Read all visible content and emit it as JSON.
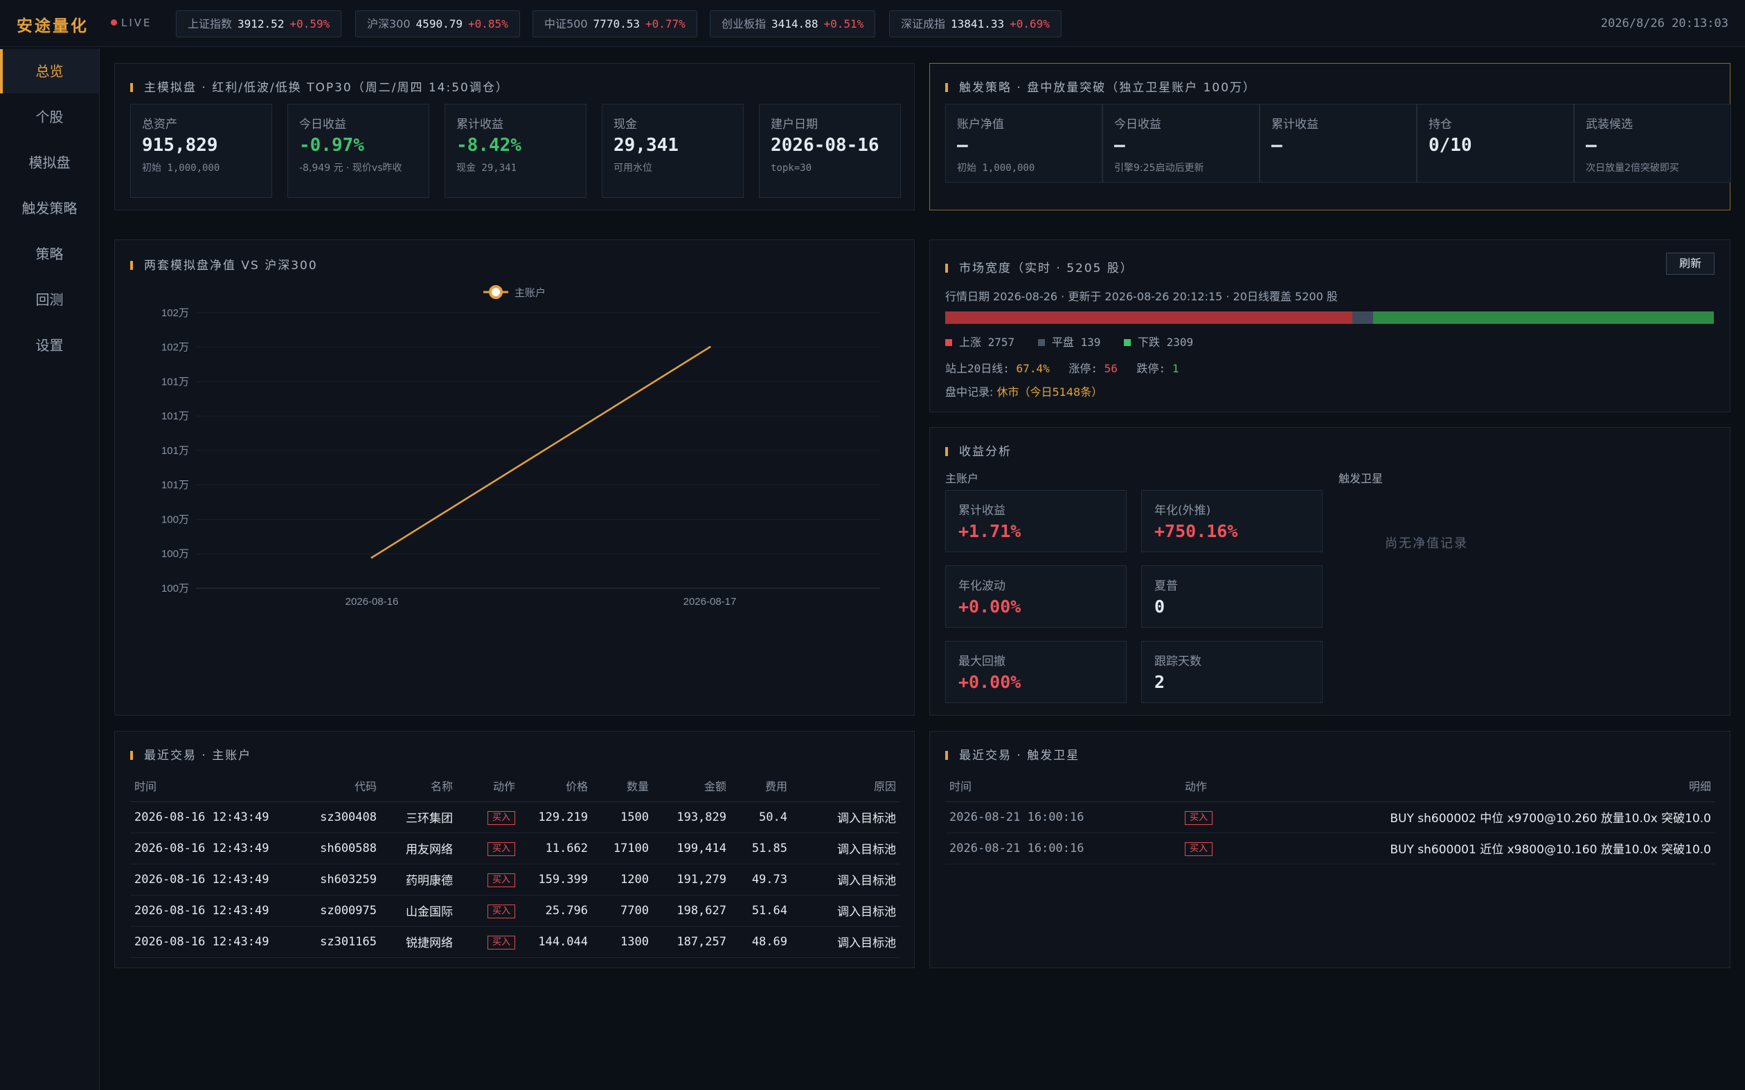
{
  "brand": "安途量化",
  "live_label": "LIVE",
  "tickers": [
    {
      "name": "上证指数",
      "value": "3912.52",
      "change": "+0.59%"
    },
    {
      "name": "沪深300",
      "value": "4590.79",
      "change": "+0.85%"
    },
    {
      "name": "中证500",
      "value": "7770.53",
      "change": "+0.77%"
    },
    {
      "name": "创业板指",
      "value": "3414.88",
      "change": "+0.51%"
    },
    {
      "name": "深证成指",
      "value": "13841.33",
      "change": "+0.69%"
    }
  ],
  "clock": "2026/8/26 20:13:03",
  "sidebar": {
    "items": [
      {
        "label": "总览",
        "active": true
      },
      {
        "label": "个股"
      },
      {
        "label": "模拟盘"
      },
      {
        "label": "触发策略"
      },
      {
        "label": "策略"
      },
      {
        "label": "回测"
      },
      {
        "label": "设置"
      }
    ]
  },
  "main_sim": {
    "title": "主模拟盘 · 红利/低波/低换 TOP30（周二/周四 14:50调仓）",
    "cards": [
      {
        "label": "总资产",
        "value": "915,829",
        "sub": "初始 1,000,000",
        "tone": ""
      },
      {
        "label": "今日收益",
        "value": "-0.97%",
        "sub": "-8,949 元 · 现价vs昨收",
        "tone": "green"
      },
      {
        "label": "累计收益",
        "value": "-8.42%",
        "sub": "现金 29,341",
        "tone": "green"
      },
      {
        "label": "现金",
        "value": "29,341",
        "sub": "可用水位",
        "tone": ""
      },
      {
        "label": "建户日期",
        "value": "2026-08-16",
        "sub": "topk=30",
        "tone": ""
      }
    ]
  },
  "trigger": {
    "title": "触发策略 · 盘中放量突破（独立卫星账户 100万）",
    "cards": [
      {
        "label": "账户净值",
        "value": "—",
        "sub": "初始 1,000,000"
      },
      {
        "label": "今日收益",
        "value": "—",
        "sub": "引擎9:25启动后更新"
      },
      {
        "label": "累计收益",
        "value": "—",
        "sub": ""
      },
      {
        "label": "持仓",
        "value": "0/10",
        "sub": ""
      },
      {
        "label": "武装候选",
        "value": "—",
        "sub": "次日放量2倍突破即买"
      }
    ]
  },
  "chart_panel": {
    "title": "两套模拟盘净值 VS 沪深300"
  },
  "chart_data": {
    "type": "line",
    "title": "两套模拟盘净值 VS 沪深300",
    "categories": [
      "2026-08-16",
      "2026-08-17"
    ],
    "series": [
      {
        "name": "主账户",
        "values": [
          1000000,
          1017100
        ],
        "color": "#e6a23c"
      }
    ],
    "ylim": [
      997500,
      1020000
    ],
    "y_tick_values": [
      997500,
      1000300,
      1003100,
      1005900,
      1008700,
      1011500,
      1014300,
      1017100,
      1019900
    ],
    "y_tick_labels": [
      "100万",
      "100万",
      "100万",
      "101万",
      "101万",
      "101万",
      "101万",
      "102万",
      "102万"
    ],
    "legend": "top-center",
    "grid": true
  },
  "breadth": {
    "title": "市场宽度（实时 · 5205 股）",
    "refresh_label": "刷新",
    "info": "行情日期 2026-08-26 · 更新于 2026-08-26 20:12:15 · 20日线覆盖 5200 股",
    "up": 2757,
    "flat": 139,
    "down": 2309,
    "up_label": "上涨 2757",
    "flat_label": "平盘 139",
    "down_label": "下跌 2309",
    "ma20_label": "站上20日线:",
    "ma20_value": "67.4%",
    "limit_up_label": "涨停:",
    "limit_up_value": "56",
    "limit_down_label": "跌停:",
    "limit_down_value": "1",
    "record_label": "盘中记录:",
    "record_value": "休市（今日5148条）",
    "colors": {
      "up": "#a83236",
      "flat": "#3d4a5c",
      "down": "#2d8a45"
    }
  },
  "returns": {
    "title": "收益分析",
    "main_label": "主账户",
    "sat_label": "触发卫星",
    "empty_text": "尚无净值记录",
    "cards": [
      {
        "label": "累计收益",
        "value": "+1.71%",
        "tone": "red"
      },
      {
        "label": "年化(外推)",
        "value": "+750.16%",
        "tone": "red"
      },
      {
        "label": "年化波动",
        "value": "+0.00%",
        "tone": "red"
      },
      {
        "label": "夏普",
        "value": "0",
        "tone": ""
      },
      {
        "label": "最大回撤",
        "value": "+0.00%",
        "tone": "red"
      },
      {
        "label": "跟踪天数",
        "value": "2",
        "tone": ""
      }
    ]
  },
  "trades_main": {
    "title": "最近交易 · 主账户",
    "headers": [
      "时间",
      "代码",
      "名称",
      "动作",
      "价格",
      "数量",
      "金额",
      "费用",
      "原因"
    ],
    "rows": [
      [
        "2026-08-16 12:43:49",
        "sz300408",
        "三环集团",
        "买入",
        "129.219",
        "1500",
        "193,829",
        "50.4",
        "调入目标池"
      ],
      [
        "2026-08-16 12:43:49",
        "sh600588",
        "用友网络",
        "买入",
        "11.662",
        "17100",
        "199,414",
        "51.85",
        "调入目标池"
      ],
      [
        "2026-08-16 12:43:49",
        "sh603259",
        "药明康德",
        "买入",
        "159.399",
        "1200",
        "191,279",
        "49.73",
        "调入目标池"
      ],
      [
        "2026-08-16 12:43:49",
        "sz000975",
        "山金国际",
        "买入",
        "25.796",
        "7700",
        "198,627",
        "51.64",
        "调入目标池"
      ],
      [
        "2026-08-16 12:43:49",
        "sz301165",
        "锐捷网络",
        "买入",
        "144.044",
        "1300",
        "187,257",
        "48.69",
        "调入目标池"
      ]
    ]
  },
  "trades_trigger": {
    "title": "最近交易 · 触发卫星",
    "headers": [
      "时间",
      "动作",
      "明细"
    ],
    "rows": [
      [
        "2026-08-21 16:00:16",
        "买入",
        "BUY sh600002 中位 x9700@10.260 放量10.0x 突破10.0"
      ],
      [
        "2026-08-21 16:00:16",
        "买入",
        "BUY sh600001 近位 x9800@10.160 放量10.0x 突破10.0"
      ]
    ]
  }
}
